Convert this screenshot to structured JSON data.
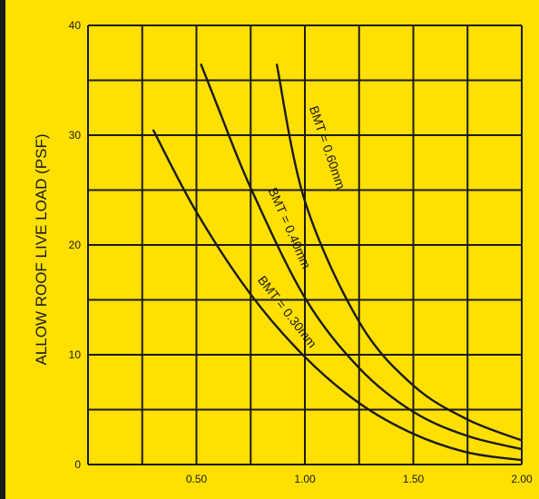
{
  "chart_data": {
    "type": "line",
    "title": "",
    "xlabel": "",
    "ylabel": "ALLOW ROOF LIVE LOAD (PSF)",
    "xlim": [
      0.0,
      2.0
    ],
    "ylim": [
      0,
      40
    ],
    "x_tick_labels": [
      "0.50",
      "1.00",
      "1.50",
      "2.00"
    ],
    "x_tick_values": [
      0.5,
      1.0,
      1.5,
      2.0
    ],
    "y_tick_labels": [
      "0",
      "10",
      "20",
      "30",
      "40"
    ],
    "y_tick_values": [
      0,
      10,
      20,
      30,
      40
    ],
    "grid": true,
    "colors": {
      "background": "#FFE000",
      "ink": "#1a1a1a"
    },
    "series": [
      {
        "name": "BMT = 0.30mm",
        "x": [
          0.3,
          0.5,
          0.75,
          1.0,
          1.25,
          1.5,
          1.75,
          2.0
        ],
        "y": [
          30.5,
          23.0,
          15.5,
          9.8,
          5.6,
          2.8,
          1.1,
          0.4
        ]
      },
      {
        "name": "BMT = 0.40mm",
        "x": [
          0.52,
          0.6,
          0.75,
          1.0,
          1.25,
          1.5,
          1.75,
          2.0
        ],
        "y": [
          36.5,
          32.5,
          25.2,
          15.2,
          8.8,
          4.8,
          2.6,
          1.4
        ]
      },
      {
        "name": "BMT = 0.60mm",
        "x": [
          0.87,
          1.0,
          1.25,
          1.5,
          1.75,
          2.0
        ],
        "y": [
          36.5,
          24.0,
          13.0,
          7.2,
          4.1,
          2.2
        ]
      }
    ]
  }
}
